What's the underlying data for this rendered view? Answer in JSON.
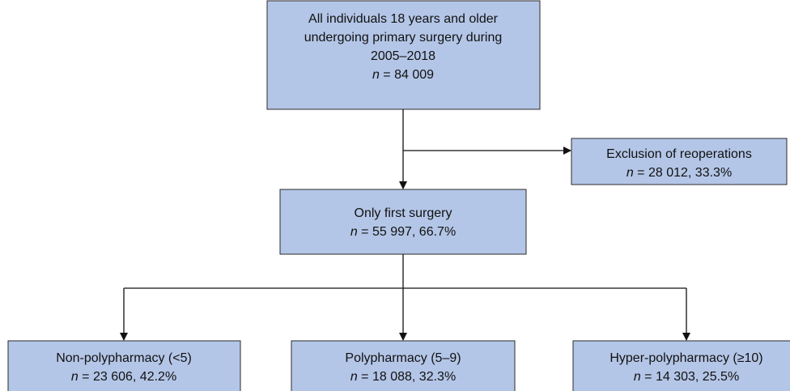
{
  "nodes": [
    {
      "lines": [
        "All individuals 18 years and older",
        "undergoing primary surgery during",
        "2005–2018"
      ],
      "n_symbol": "n",
      "n_text": " = 84 009"
    },
    {
      "lines": [
        "Exclusion of reoperations"
      ],
      "n_symbol": "n",
      "n_text": " = 28 012, 33.3%"
    },
    {
      "lines": [
        "Only first surgery"
      ],
      "n_symbol": "n",
      "n_text": " = 55 997, 66.7%"
    },
    {
      "lines": [
        "Non-polypharmacy (<5)"
      ],
      "n_symbol": "n",
      "n_text": " = 23 606, 42.2%"
    },
    {
      "lines": [
        "Polypharmacy (5–9)"
      ],
      "n_symbol": "n",
      "n_text": " = 18 088, 32.3%"
    },
    {
      "lines": [
        "Hyper-polypharmacy (≥10)"
      ],
      "n_symbol": "n",
      "n_text": " = 14 303, 25.5%"
    }
  ]
}
